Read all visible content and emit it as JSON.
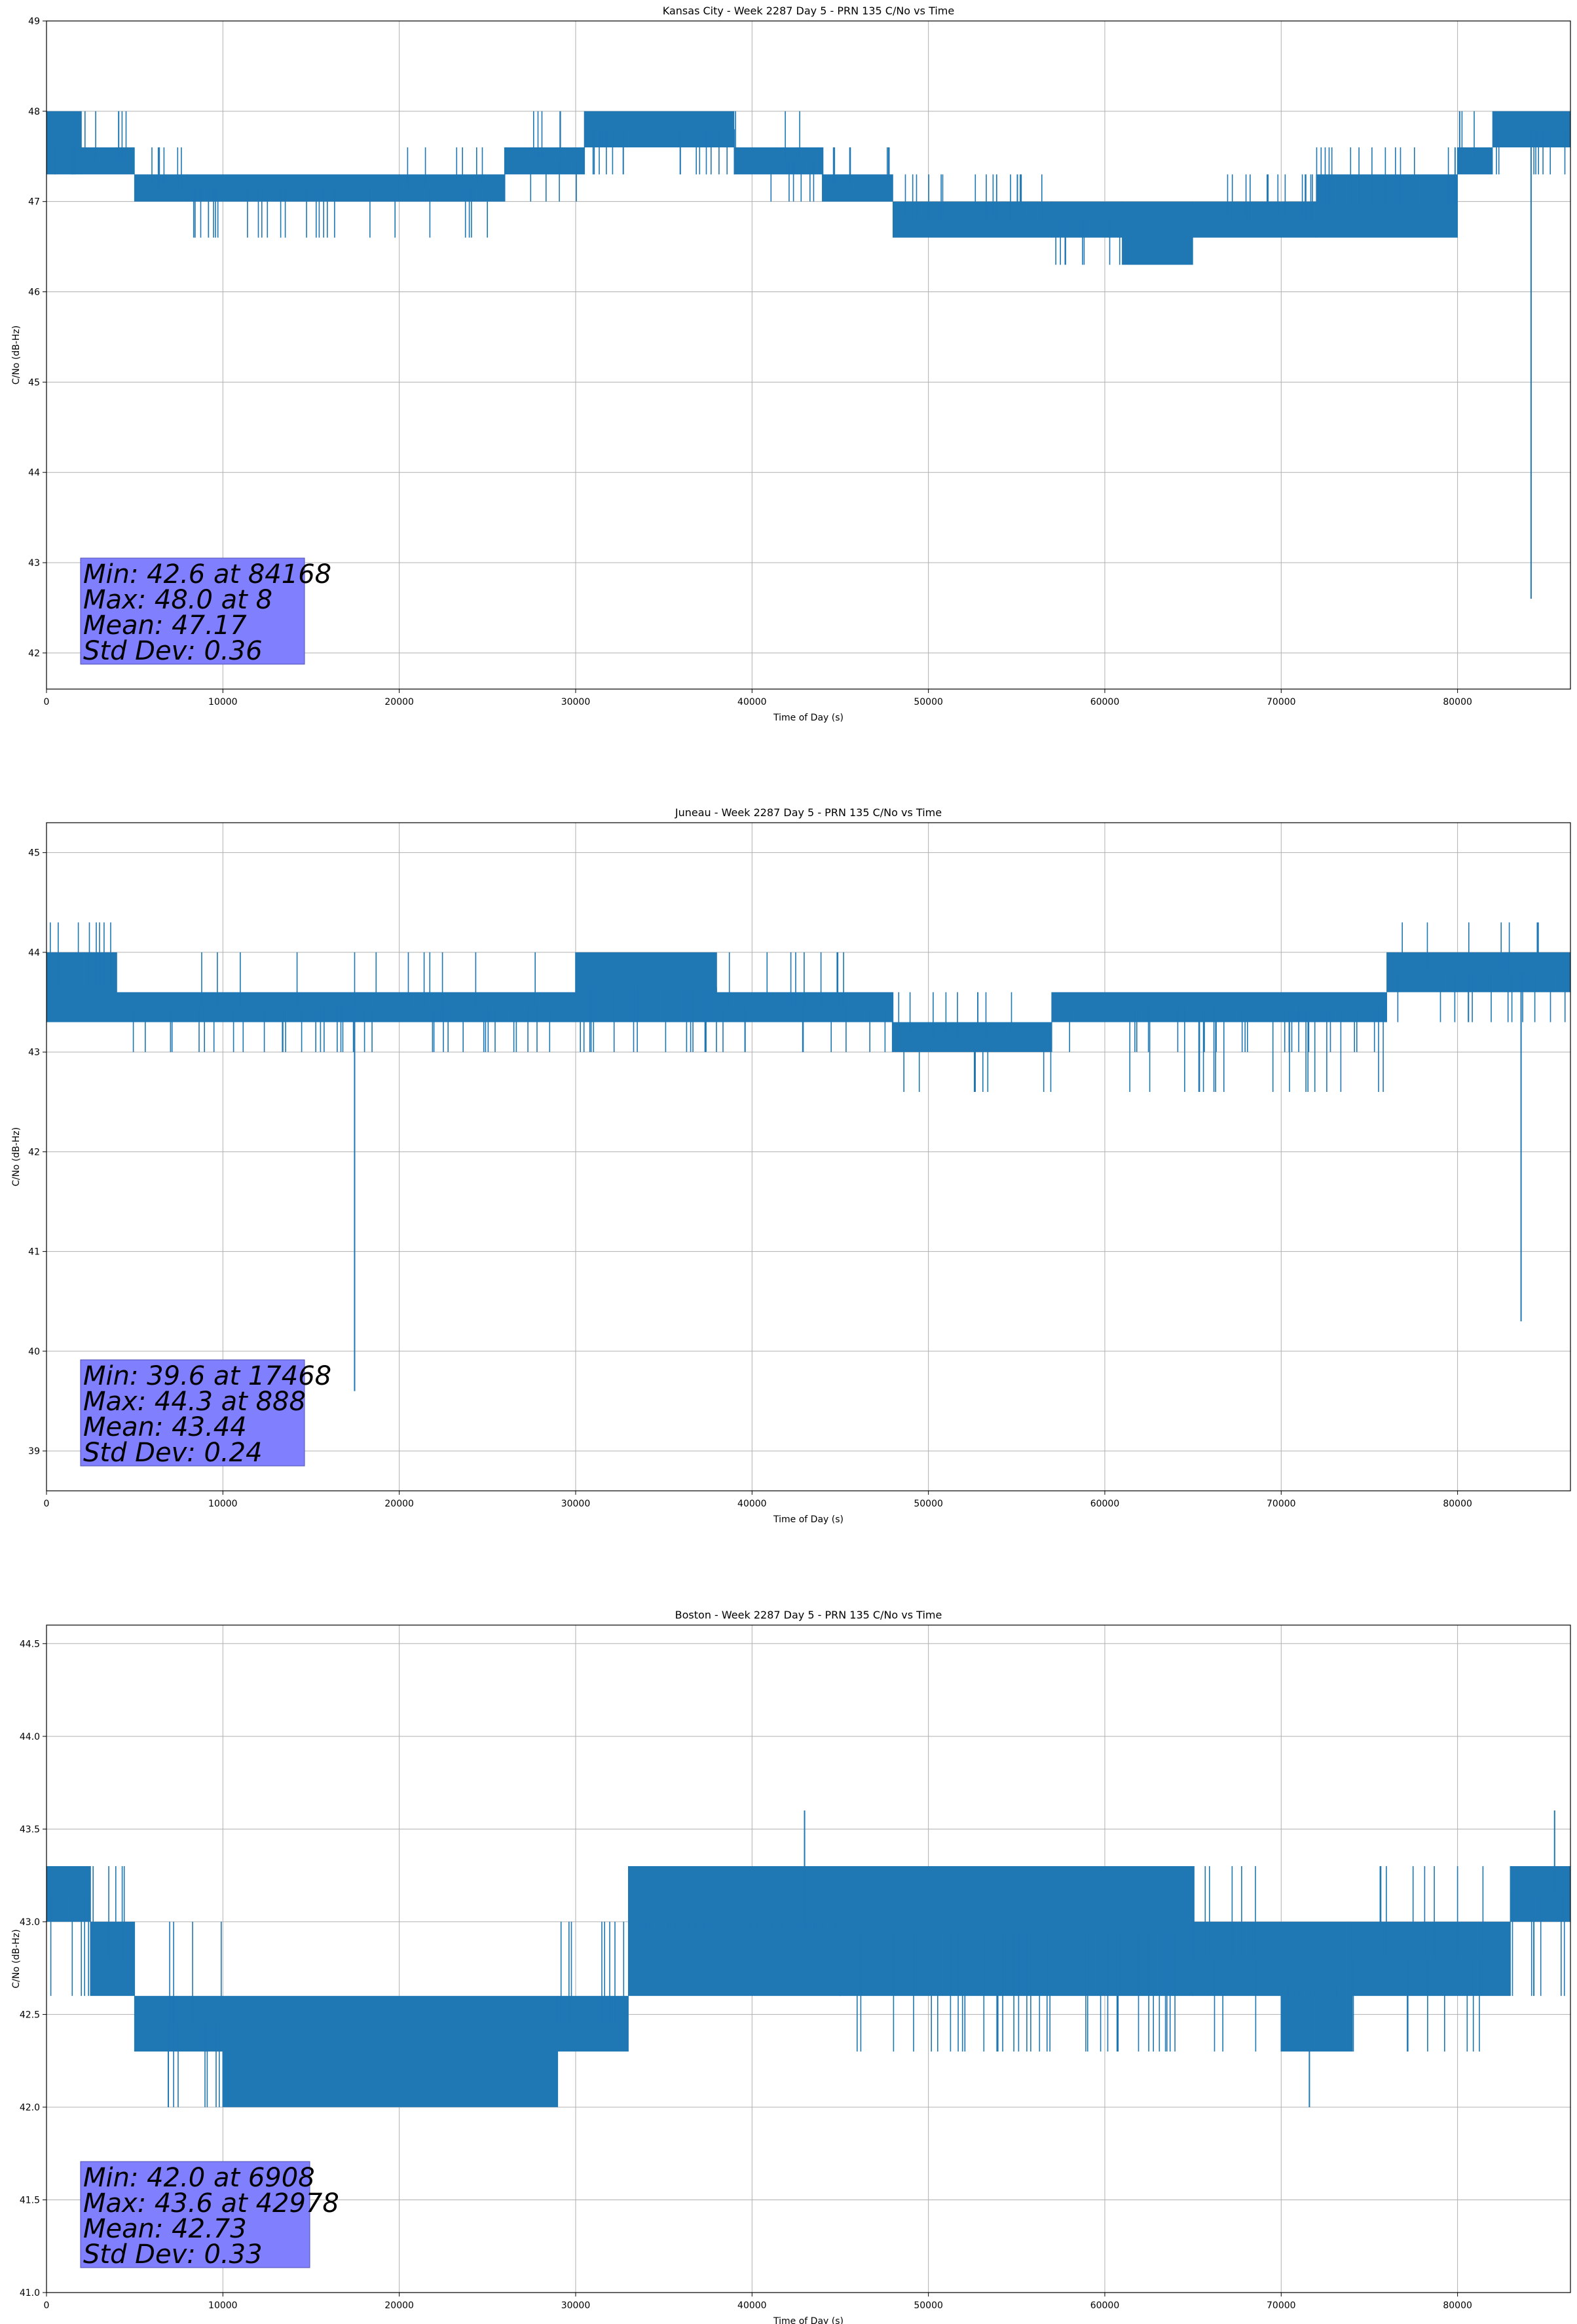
{
  "chart_data": [
    {
      "type": "line",
      "title": "Kansas City - Week 2287 Day 5 - PRN 135 C/No vs Time",
      "xlabel": "Time of Day (s)",
      "ylabel": "C/No (dB-Hz)",
      "xlim": [
        0,
        86400
      ],
      "ylim": [
        41.6,
        49.0
      ],
      "xticks": [
        0,
        10000,
        20000,
        30000,
        40000,
        50000,
        60000,
        70000,
        80000
      ],
      "yticks": [
        42,
        43,
        44,
        45,
        46,
        47,
        48,
        49
      ],
      "tick_decimals": 0,
      "grid": true,
      "color": "#1f77b4",
      "series": [
        {
          "segments": [
            {
              "x0": 0,
              "x1": 2000,
              "lo": 47.3,
              "hi": 48.0,
              "dips": [
                47.3
              ]
            },
            {
              "x0": 2000,
              "x1": 5000,
              "lo": 47.3,
              "hi": 47.6,
              "dips": [
                48.0
              ]
            },
            {
              "x0": 5000,
              "x1": 8000,
              "lo": 47.0,
              "hi": 47.3,
              "dips": [
                47.6
              ]
            },
            {
              "x0": 8000,
              "x1": 20000,
              "lo": 47.0,
              "hi": 47.3,
              "dips": [
                46.6,
                46.6,
                46.6,
                46.6,
                46.6
              ]
            },
            {
              "x0": 20000,
              "x1": 26000,
              "lo": 47.0,
              "hi": 47.3,
              "dips": [
                47.6,
                46.6
              ]
            },
            {
              "x0": 26000,
              "x1": 30500,
              "lo": 47.3,
              "hi": 47.6,
              "dips": [
                47.0,
                48.0
              ]
            },
            {
              "x0": 30500,
              "x1": 39000,
              "lo": 47.6,
              "hi": 48.0,
              "dips": [
                47.3
              ]
            },
            {
              "x0": 39000,
              "x1": 44000,
              "lo": 47.3,
              "hi": 47.6,
              "dips": [
                48.0,
                47.0
              ]
            },
            {
              "x0": 44000,
              "x1": 48000,
              "lo": 47.0,
              "hi": 47.3,
              "dips": [
                47.6
              ]
            },
            {
              "x0": 48000,
              "x1": 57000,
              "lo": 46.6,
              "hi": 47.0,
              "dips": [
                47.3
              ]
            },
            {
              "x0": 57000,
              "x1": 61000,
              "lo": 46.6,
              "hi": 47.0,
              "dips": [
                46.3,
                46.3
              ]
            },
            {
              "x0": 61000,
              "x1": 65000,
              "lo": 46.3,
              "hi": 47.0,
              "dips": [
                46.6
              ]
            },
            {
              "x0": 65000,
              "x1": 72000,
              "lo": 46.6,
              "hi": 47.0,
              "dips": [
                47.3
              ]
            },
            {
              "x0": 72000,
              "x1": 80000,
              "lo": 46.6,
              "hi": 47.3,
              "dips": [
                47.6
              ]
            },
            {
              "x0": 80000,
              "x1": 82000,
              "lo": 47.3,
              "hi": 47.6,
              "dips": [
                48.0
              ]
            },
            {
              "x0": 82000,
              "x1": 86400,
              "lo": 47.6,
              "hi": 48.0,
              "dips": [
                47.3
              ]
            }
          ],
          "spikes": [
            [
              84168,
              42.6
            ]
          ]
        }
      ],
      "stats_box": {
        "min": "Min: 42.6 at 84168",
        "max": "Max: 48.0 at 8",
        "mean": "Mean: 47.17",
        "std": "Std Dev: 0.36"
      }
    },
    {
      "type": "line",
      "title": "Juneau - Week 2287 Day 5 - PRN 135 C/No vs Time",
      "xlabel": "Time of Day (s)",
      "ylabel": "C/No (dB-Hz)",
      "xlim": [
        0,
        86400
      ],
      "ylim": [
        38.6,
        45.3
      ],
      "xticks": [
        0,
        10000,
        20000,
        30000,
        40000,
        50000,
        60000,
        70000,
        80000
      ],
      "yticks": [
        39,
        40,
        41,
        42,
        43,
        44,
        45
      ],
      "tick_decimals": 0,
      "grid": true,
      "color": "#1f77b4",
      "series": [
        {
          "segments": [
            {
              "x0": 0,
              "x1": 4000,
              "lo": 43.3,
              "hi": 44.0,
              "dips": [
                44.3
              ]
            },
            {
              "x0": 4000,
              "x1": 30000,
              "lo": 43.3,
              "hi": 43.6,
              "dips": [
                44.0,
                43.0,
                43.0
              ]
            },
            {
              "x0": 30000,
              "x1": 38000,
              "lo": 43.3,
              "hi": 44.0,
              "dips": [
                43.0
              ]
            },
            {
              "x0": 38000,
              "x1": 48000,
              "lo": 43.3,
              "hi": 43.6,
              "dips": [
                44.0,
                43.0
              ]
            },
            {
              "x0": 48000,
              "x1": 57000,
              "lo": 43.0,
              "hi": 43.3,
              "dips": [
                42.6,
                43.6
              ]
            },
            {
              "x0": 57000,
              "x1": 76000,
              "lo": 43.3,
              "hi": 43.6,
              "dips": [
                43.0,
                42.6
              ]
            },
            {
              "x0": 76000,
              "x1": 86400,
              "lo": 43.6,
              "hi": 44.0,
              "dips": [
                43.3,
                44.3
              ]
            }
          ],
          "spikes": [
            [
              17468,
              39.6
            ],
            [
              83600,
              40.3
            ]
          ]
        }
      ],
      "stats_box": {
        "min": "Min: 39.6 at 17468",
        "max": "Max: 44.3 at 888",
        "mean": "Mean: 43.44",
        "std": "Std Dev: 0.24"
      }
    },
    {
      "type": "line",
      "title": "Boston - Week 2287 Day 5 - PRN 135 C/No vs Time",
      "xlabel": "Time of Day (s)",
      "ylabel": "C/No (dB-Hz)",
      "xlim": [
        0,
        86400
      ],
      "ylim": [
        41.0,
        44.6
      ],
      "xticks": [
        0,
        10000,
        20000,
        30000,
        40000,
        50000,
        60000,
        70000,
        80000
      ],
      "yticks": [
        41.0,
        41.5,
        42.0,
        42.5,
        43.0,
        43.5,
        44.0,
        44.5
      ],
      "tick_decimals": 1,
      "grid": true,
      "color": "#1f77b4",
      "series": [
        {
          "segments": [
            {
              "x0": 0,
              "x1": 2500,
              "lo": 43.0,
              "hi": 43.3,
              "dips": [
                42.6
              ]
            },
            {
              "x0": 2500,
              "x1": 5000,
              "lo": 42.6,
              "hi": 43.0,
              "dips": [
                43.3
              ]
            },
            {
              "x0": 5000,
              "x1": 10000,
              "lo": 42.3,
              "hi": 42.6,
              "dips": [
                43.0,
                42.0
              ]
            },
            {
              "x0": 10000,
              "x1": 29000,
              "lo": 42.0,
              "hi": 42.6,
              "dips": [
                42.3
              ]
            },
            {
              "x0": 29000,
              "x1": 33000,
              "lo": 42.3,
              "hi": 42.6,
              "dips": [
                43.0
              ]
            },
            {
              "x0": 33000,
              "x1": 45000,
              "lo": 42.6,
              "hi": 43.3,
              "dips": [
                43.0
              ]
            },
            {
              "x0": 45000,
              "x1": 65000,
              "lo": 42.6,
              "hi": 43.3,
              "dips": [
                42.3
              ]
            },
            {
              "x0": 65000,
              "x1": 70000,
              "lo": 42.6,
              "hi": 43.0,
              "dips": [
                42.3,
                43.3
              ]
            },
            {
              "x0": 70000,
              "x1": 74000,
              "lo": 42.3,
              "hi": 43.0,
              "dips": [
                42.6
              ]
            },
            {
              "x0": 74000,
              "x1": 83000,
              "lo": 42.6,
              "hi": 43.0,
              "dips": [
                43.3,
                42.3
              ]
            },
            {
              "x0": 83000,
              "x1": 86400,
              "lo": 43.0,
              "hi": 43.3,
              "dips": [
                42.6
              ]
            }
          ],
          "spikes": [
            [
              6908,
              42.0
            ],
            [
              42978,
              43.6
            ],
            [
              71600,
              42.0
            ],
            [
              85500,
              43.6
            ]
          ]
        }
      ],
      "stats_box": {
        "min": "Min: 42.0 at 6908",
        "max": "Max: 43.6 at 42978",
        "mean": "Mean: 42.73",
        "std": "Std Dev: 0.33"
      }
    }
  ]
}
